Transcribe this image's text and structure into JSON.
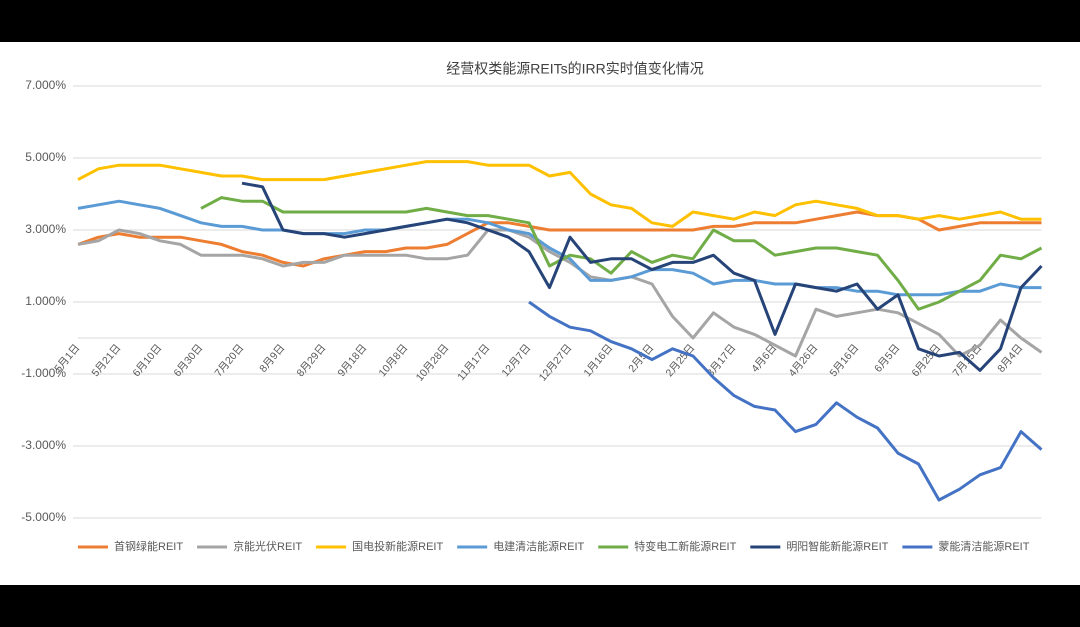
{
  "chart_data": {
    "type": "line",
    "title": "经营权类能源REITs的IRR实时值变化情况",
    "categories": [
      "5月1日",
      null,
      "5月21日",
      null,
      "6月10日",
      null,
      "6月30日",
      null,
      "7月20日",
      null,
      "8月9日",
      null,
      "8月29日",
      null,
      "9月18日",
      null,
      "10月8日",
      null,
      "10月28日",
      null,
      "11月17日",
      null,
      "12月7日",
      null,
      "12月27日",
      null,
      "1月16日",
      null,
      "2月5日",
      null,
      "2月25日",
      null,
      "3月17日",
      null,
      "4月6日",
      null,
      "4月26日",
      null,
      "5月16日",
      null,
      "6月5日",
      null,
      "6月25日",
      null,
      "7月15日",
      null,
      "8月4日",
      null
    ],
    "ylim": [
      -5,
      7
    ],
    "yticks": [
      {
        "value": -5,
        "label": "-5.000%"
      },
      {
        "value": -3,
        "label": "-3.000%"
      },
      {
        "value": -1,
        "label": "-1.000%"
      },
      {
        "value": 1,
        "label": "1.000%"
      },
      {
        "value": 3,
        "label": "3.000%"
      },
      {
        "value": 5,
        "label": "5.000%"
      },
      {
        "value": 7,
        "label": "7.000%"
      }
    ],
    "grid": true,
    "legend": "bottom",
    "series": [
      {
        "name": "首钢绿能REIT",
        "color": "#ed7d31",
        "values": [
          2.6,
          2.8,
          2.9,
          2.8,
          2.8,
          2.8,
          2.7,
          2.6,
          2.4,
          2.3,
          2.1,
          2.0,
          2.2,
          2.3,
          2.4,
          2.4,
          2.5,
          2.5,
          2.6,
          2.9,
          3.2,
          3.2,
          3.1,
          3.0,
          3.0,
          3.0,
          3.0,
          3.0,
          3.0,
          3.0,
          3.0,
          3.1,
          3.1,
          3.2,
          3.2,
          3.2,
          3.3,
          3.4,
          3.5,
          3.4,
          3.4,
          3.3,
          3.0,
          3.1,
          3.2,
          3.2,
          3.2,
          3.2
        ]
      },
      {
        "name": "京能光伏REIT",
        "color": "#a5a5a5",
        "values": [
          2.6,
          2.7,
          3.0,
          2.9,
          2.7,
          2.6,
          2.3,
          2.3,
          2.3,
          2.2,
          2.0,
          2.1,
          2.1,
          2.3,
          2.3,
          2.3,
          2.3,
          2.2,
          2.2,
          2.3,
          3.0,
          3.0,
          2.8,
          2.4,
          2.1,
          1.7,
          1.6,
          1.7,
          1.5,
          0.6,
          0.0,
          0.7,
          0.3,
          0.1,
          -0.2,
          -0.5,
          0.8,
          0.6,
          0.7,
          0.8,
          0.7,
          0.4,
          0.1,
          -0.5,
          -0.2,
          0.5,
          0.0,
          -0.4
        ]
      },
      {
        "name": "国电投新能源REIT",
        "color": "#ffc000",
        "values": [
          4.4,
          4.7,
          4.8,
          4.8,
          4.8,
          4.7,
          4.6,
          4.5,
          4.5,
          4.4,
          4.4,
          4.4,
          4.4,
          4.5,
          4.6,
          4.7,
          4.8,
          4.9,
          4.9,
          4.9,
          4.8,
          4.8,
          4.8,
          4.5,
          4.6,
          4.0,
          3.7,
          3.6,
          3.2,
          3.1,
          3.5,
          3.4,
          3.3,
          3.5,
          3.4,
          3.7,
          3.8,
          3.7,
          3.6,
          3.4,
          3.4,
          3.3,
          3.4,
          3.3,
          3.4,
          3.5,
          3.3,
          3.3
        ]
      },
      {
        "name": "电建清洁能源REIT",
        "color": "#5b9bd5",
        "values": [
          3.6,
          3.7,
          3.8,
          3.7,
          3.6,
          3.4,
          3.2,
          3.1,
          3.1,
          3.0,
          3.0,
          2.9,
          2.9,
          2.9,
          3.0,
          3.0,
          3.1,
          3.2,
          3.3,
          3.3,
          3.2,
          3.0,
          2.9,
          2.5,
          2.2,
          1.6,
          1.6,
          1.7,
          1.9,
          1.9,
          1.8,
          1.5,
          1.6,
          1.6,
          1.5,
          1.5,
          1.4,
          1.4,
          1.3,
          1.3,
          1.2,
          1.2,
          1.2,
          1.3,
          1.3,
          1.5,
          1.4,
          1.4
        ]
      },
      {
        "name": "特变电工新能源REIT",
        "color": "#70ad47",
        "values": [
          null,
          null,
          null,
          null,
          null,
          null,
          3.6,
          3.9,
          3.8,
          3.8,
          3.5,
          3.5,
          3.5,
          3.5,
          3.5,
          3.5,
          3.5,
          3.6,
          3.5,
          3.4,
          3.4,
          3.3,
          3.2,
          2.0,
          2.3,
          2.2,
          1.8,
          2.4,
          2.1,
          2.3,
          2.2,
          3.0,
          2.7,
          2.7,
          2.3,
          2.4,
          2.5,
          2.5,
          2.4,
          2.3,
          1.6,
          0.8,
          1.0,
          1.3,
          1.6,
          2.3,
          2.2,
          2.5
        ]
      },
      {
        "name": "明阳智能新能源REIT",
        "color": "#264478",
        "values": [
          null,
          null,
          null,
          null,
          null,
          null,
          null,
          null,
          4.3,
          4.2,
          3.0,
          2.9,
          2.9,
          2.8,
          2.9,
          3.0,
          3.1,
          3.2,
          3.3,
          3.2,
          3.0,
          2.8,
          2.4,
          1.4,
          2.8,
          2.1,
          2.2,
          2.2,
          1.9,
          2.1,
          2.1,
          2.3,
          1.8,
          1.6,
          0.1,
          1.5,
          1.4,
          1.3,
          1.5,
          0.8,
          1.2,
          -0.3,
          -0.5,
          -0.4,
          -0.9,
          -0.3,
          1.4,
          2.0
        ]
      },
      {
        "name": "蒙能清洁能源REIT",
        "color": "#4472c4",
        "values": [
          null,
          null,
          null,
          null,
          null,
          null,
          null,
          null,
          null,
          null,
          null,
          null,
          null,
          null,
          null,
          null,
          null,
          null,
          null,
          null,
          null,
          null,
          1.0,
          0.6,
          0.3,
          0.2,
          -0.1,
          -0.3,
          -0.6,
          -0.3,
          -0.5,
          -1.1,
          -1.6,
          -1.9,
          -2.0,
          -2.6,
          -2.4,
          -1.8,
          -2.2,
          -2.5,
          -3.2,
          -3.5,
          -4.5,
          -4.2,
          -3.8,
          -3.6,
          -2.6,
          -3.1
        ]
      }
    ]
  }
}
